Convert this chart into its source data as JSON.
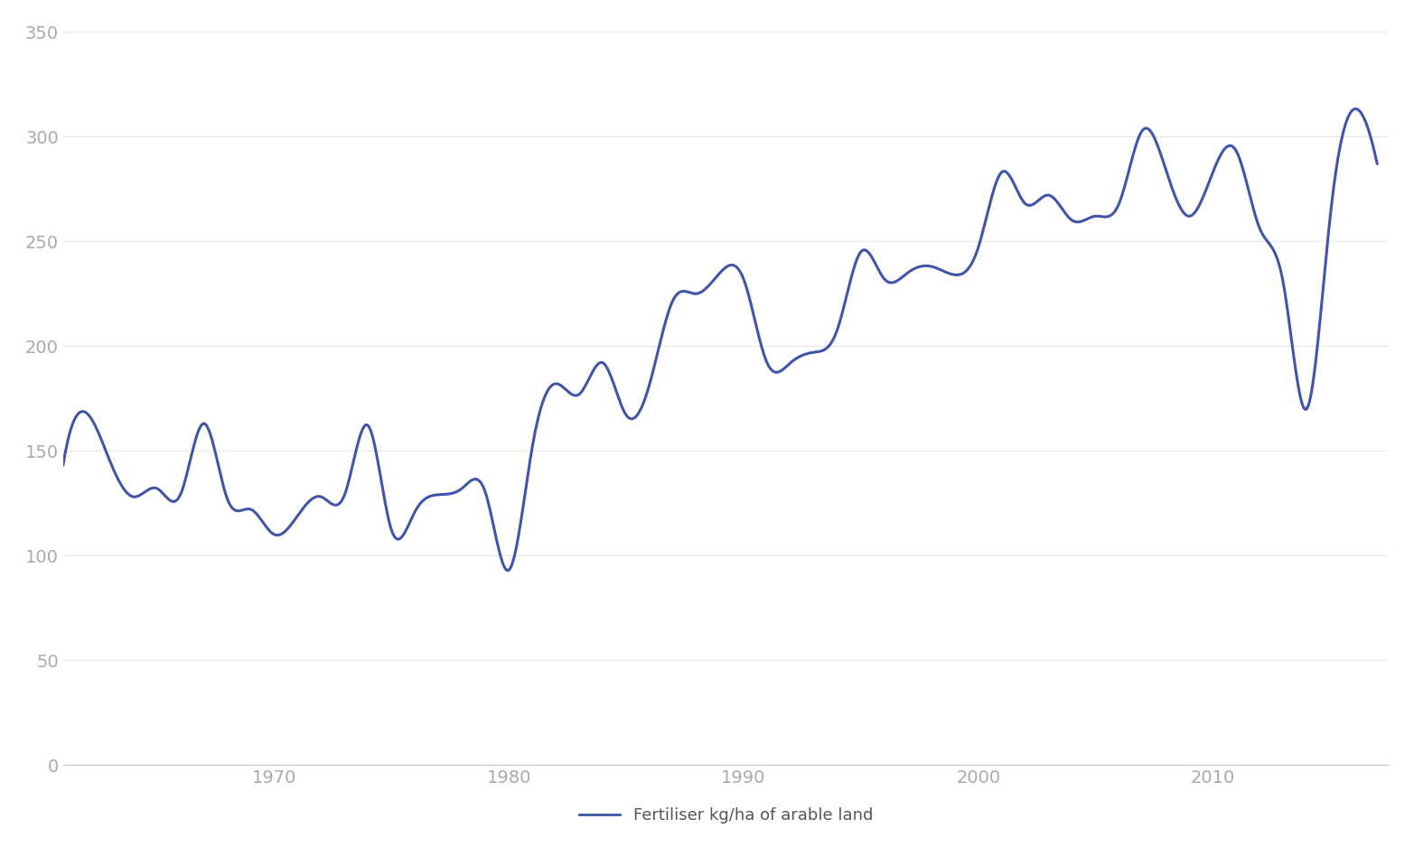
{
  "years": [
    1961,
    1962,
    1963,
    1964,
    1965,
    1966,
    1967,
    1968,
    1969,
    1970,
    1971,
    1972,
    1973,
    1974,
    1975,
    1976,
    1977,
    1978,
    1979,
    1980,
    1981,
    1982,
    1983,
    1984,
    1985,
    1986,
    1987,
    1988,
    1989,
    1990,
    1991,
    1992,
    1993,
    1994,
    1995,
    1996,
    1997,
    1998,
    1999,
    2000,
    2001,
    2002,
    2003,
    2004,
    2005,
    2006,
    2007,
    2008,
    2009,
    2010,
    2011,
    2012,
    2013,
    2014,
    2015,
    2016,
    2017
  ],
  "values": [
    143,
    168,
    145,
    128,
    132,
    129,
    163,
    127,
    122,
    110,
    119,
    128,
    129,
    162,
    112,
    121,
    129,
    132,
    130,
    93,
    152,
    182,
    177,
    192,
    167,
    182,
    222,
    225,
    235,
    232,
    192,
    192,
    197,
    208,
    245,
    232,
    235,
    238,
    234,
    247,
    283,
    268,
    272,
    260,
    262,
    268,
    303,
    284,
    262,
    283,
    293,
    256,
    230,
    170,
    262,
    313,
    287
  ],
  "line_color": "#4055a8",
  "line_width": 2.2,
  "background_color": "#ffffff",
  "ylim": [
    0,
    350
  ],
  "yticks": [
    0,
    50,
    100,
    150,
    200,
    250,
    300,
    350
  ],
  "xlim_start": 1961,
  "xlim_end": 2017.5,
  "xtick_years": [
    1970,
    1980,
    1990,
    2000,
    2010
  ],
  "legend_label": "Fertiliser kg/ha of arable land",
  "tick_color": "#aaaaaa",
  "tick_fontsize": 14,
  "legend_fontsize": 13,
  "smooth_sigma": 1.0
}
